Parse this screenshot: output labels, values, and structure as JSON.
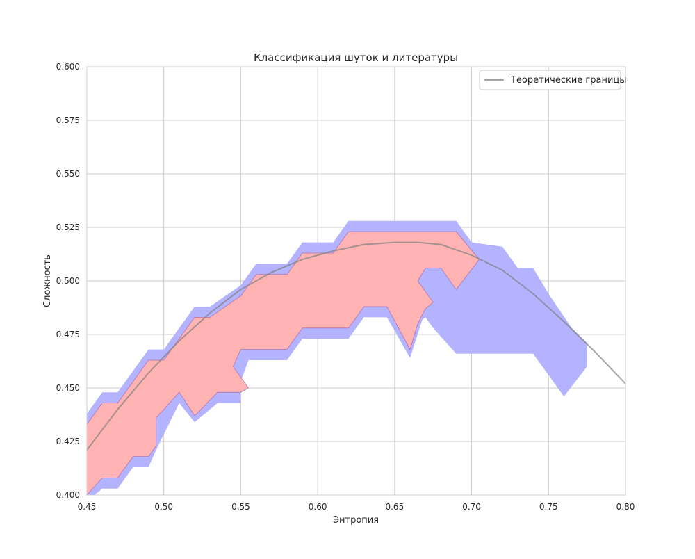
{
  "chart_data": {
    "type": "area",
    "title": "Классификация шуток и литературы",
    "xlabel": "Энтропия",
    "ylabel": "Сложность",
    "xlim": [
      0.45,
      0.8
    ],
    "ylim": [
      0.4,
      0.6
    ],
    "x_ticks": [
      0.45,
      0.5,
      0.55,
      0.6,
      0.65,
      0.7,
      0.75,
      0.8
    ],
    "x_tick_labels": [
      "0.45",
      "0.50",
      "0.55",
      "0.60",
      "0.65",
      "0.70",
      "0.75",
      "0.80"
    ],
    "y_ticks": [
      0.4,
      0.425,
      0.45,
      0.475,
      0.5,
      0.525,
      0.55,
      0.575,
      0.6
    ],
    "y_tick_labels": [
      "0.400",
      "0.425",
      "0.450",
      "0.475",
      "0.500",
      "0.525",
      "0.550",
      "0.575",
      "0.600"
    ],
    "grid": true,
    "legend_position": "top-right",
    "legend": [
      {
        "label": "Теоретические границы",
        "color": "#a6a6a6"
      }
    ],
    "regions": [
      {
        "color": "#b3b3ff",
        "points": [
          [
            0.45,
            0.438
          ],
          [
            0.46,
            0.448
          ],
          [
            0.47,
            0.448
          ],
          [
            0.49,
            0.468
          ],
          [
            0.5,
            0.468
          ],
          [
            0.52,
            0.488
          ],
          [
            0.53,
            0.488
          ],
          [
            0.55,
            0.498
          ],
          [
            0.56,
            0.508
          ],
          [
            0.58,
            0.508
          ],
          [
            0.59,
            0.518
          ],
          [
            0.61,
            0.518
          ],
          [
            0.62,
            0.528
          ],
          [
            0.69,
            0.528
          ],
          [
            0.7,
            0.518
          ],
          [
            0.72,
            0.516
          ],
          [
            0.73,
            0.506
          ],
          [
            0.74,
            0.506
          ],
          [
            0.75,
            0.494
          ],
          [
            0.765,
            0.478
          ],
          [
            0.775,
            0.471
          ],
          [
            0.775,
            0.46
          ],
          [
            0.76,
            0.446
          ],
          [
            0.74,
            0.466
          ],
          [
            0.69,
            0.466
          ],
          [
            0.675,
            0.478
          ],
          [
            0.67,
            0.483
          ],
          [
            0.668,
            0.482
          ],
          [
            0.66,
            0.464
          ],
          [
            0.645,
            0.483
          ],
          [
            0.63,
            0.483
          ],
          [
            0.62,
            0.473
          ],
          [
            0.59,
            0.473
          ],
          [
            0.58,
            0.463
          ],
          [
            0.555,
            0.463
          ],
          [
            0.55,
            0.453
          ],
          [
            0.55,
            0.443
          ],
          [
            0.535,
            0.443
          ],
          [
            0.52,
            0.434
          ],
          [
            0.51,
            0.443
          ],
          [
            0.495,
            0.421
          ],
          [
            0.49,
            0.413
          ],
          [
            0.48,
            0.413
          ],
          [
            0.47,
            0.403
          ],
          [
            0.46,
            0.403
          ],
          [
            0.455,
            0.4
          ],
          [
            0.45,
            0.4
          ]
        ]
      },
      {
        "color": "#ffb3b3",
        "points": [
          [
            0.45,
            0.433
          ],
          [
            0.46,
            0.443
          ],
          [
            0.47,
            0.443
          ],
          [
            0.49,
            0.463
          ],
          [
            0.5,
            0.463
          ],
          [
            0.52,
            0.483
          ],
          [
            0.53,
            0.483
          ],
          [
            0.55,
            0.493
          ],
          [
            0.56,
            0.503
          ],
          [
            0.58,
            0.503
          ],
          [
            0.59,
            0.513
          ],
          [
            0.61,
            0.513
          ],
          [
            0.62,
            0.523
          ],
          [
            0.69,
            0.523
          ],
          [
            0.705,
            0.51
          ],
          [
            0.69,
            0.496
          ],
          [
            0.68,
            0.506
          ],
          [
            0.67,
            0.506
          ],
          [
            0.665,
            0.5
          ],
          [
            0.675,
            0.49
          ],
          [
            0.67,
            0.487
          ],
          [
            0.665,
            0.48
          ],
          [
            0.66,
            0.468
          ],
          [
            0.645,
            0.488
          ],
          [
            0.63,
            0.488
          ],
          [
            0.62,
            0.478
          ],
          [
            0.59,
            0.478
          ],
          [
            0.58,
            0.468
          ],
          [
            0.55,
            0.468
          ],
          [
            0.545,
            0.46
          ],
          [
            0.555,
            0.45
          ],
          [
            0.55,
            0.448
          ],
          [
            0.535,
            0.448
          ],
          [
            0.52,
            0.437
          ],
          [
            0.51,
            0.448
          ],
          [
            0.495,
            0.436
          ],
          [
            0.495,
            0.423
          ],
          [
            0.49,
            0.418
          ],
          [
            0.48,
            0.418
          ],
          [
            0.47,
            0.408
          ],
          [
            0.46,
            0.408
          ],
          [
            0.45,
            0.4
          ]
        ]
      }
    ],
    "series": [
      {
        "name": "Теоретические границы",
        "color": "#a6a6a6",
        "x": [
          0.45,
          0.47,
          0.49,
          0.51,
          0.53,
          0.55,
          0.57,
          0.59,
          0.61,
          0.63,
          0.65,
          0.665,
          0.68,
          0.7,
          0.72,
          0.74,
          0.76,
          0.78,
          0.8
        ],
        "y": [
          0.421,
          0.44,
          0.457,
          0.472,
          0.485,
          0.496,
          0.504,
          0.51,
          0.514,
          0.517,
          0.518,
          0.518,
          0.517,
          0.512,
          0.505,
          0.494,
          0.481,
          0.467,
          0.452
        ]
      }
    ]
  }
}
